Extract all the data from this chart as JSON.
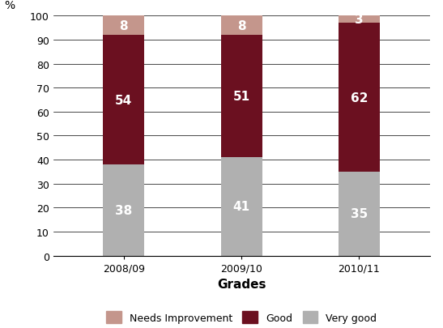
{
  "categories": [
    "2008/09",
    "2009/10",
    "2010/11"
  ],
  "very_good": [
    38,
    41,
    35
  ],
  "good": [
    54,
    51,
    62
  ],
  "needs_improvement": [
    8,
    8,
    3
  ],
  "color_very_good": "#b0b0b0",
  "color_good": "#6b1020",
  "color_needs_improvement": "#c4968c",
  "ylabel": "%",
  "xlabel": "Grades",
  "ylim": [
    0,
    100
  ],
  "yticks": [
    0,
    10,
    20,
    30,
    40,
    50,
    60,
    70,
    80,
    90,
    100
  ],
  "legend_labels": [
    "Needs Improvement",
    "Good",
    "Very good"
  ],
  "bar_width": 0.35,
  "label_fontsize": 11,
  "axis_fontsize": 9,
  "legend_fontsize": 9,
  "title_color": "#c0392b"
}
